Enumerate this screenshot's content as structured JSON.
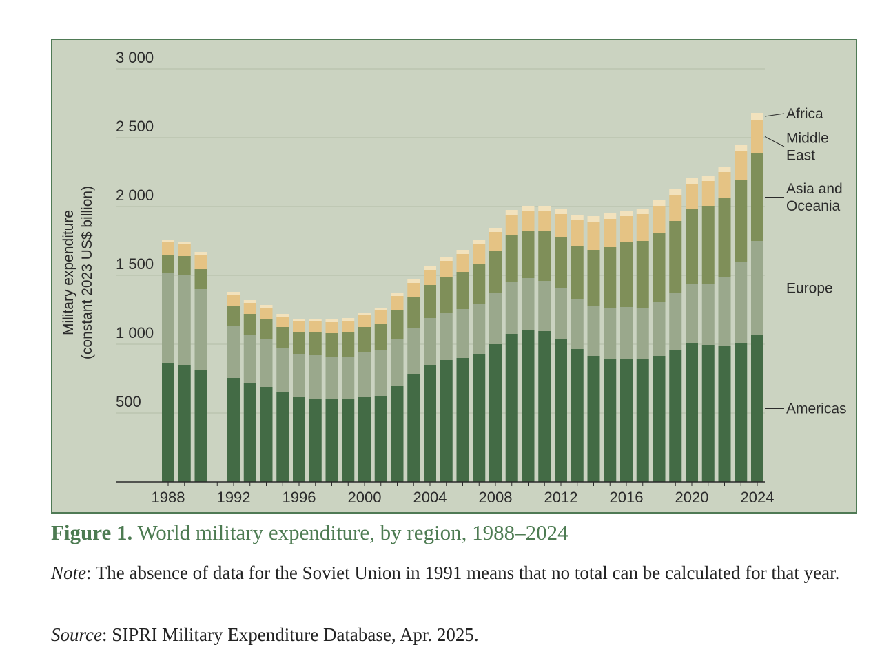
{
  "chart_data": {
    "type": "bar",
    "stacked": true,
    "title": "World military expenditure, by region, 1988–2024",
    "ylabel_line1": "Military expenditure",
    "ylabel_line2": "(constant 2023 US$ billion)",
    "xlabel": "",
    "ylim": [
      0,
      3000
    ],
    "y_ticks": [
      500,
      1000,
      1500,
      2000,
      2500,
      3000
    ],
    "y_tick_labels": [
      "500",
      "1 000",
      "1 500",
      "2 000",
      "2 500",
      "3 000"
    ],
    "x_tick_labels": [
      "1988",
      "1992",
      "1996",
      "2000",
      "2004",
      "2008",
      "2012",
      "2016",
      "2020",
      "2024"
    ],
    "categories": [
      "1988",
      "1989",
      "1990",
      "1991",
      "1992",
      "1993",
      "1994",
      "1995",
      "1996",
      "1997",
      "1998",
      "1999",
      "2000",
      "2001",
      "2002",
      "2003",
      "2004",
      "2005",
      "2006",
      "2007",
      "2008",
      "2009",
      "2010",
      "2011",
      "2012",
      "2013",
      "2014",
      "2015",
      "2016",
      "2017",
      "2018",
      "2019",
      "2020",
      "2021",
      "2022",
      "2023",
      "2024"
    ],
    "grid": true,
    "legend_position": "right (labels next to the last bar)",
    "series": [
      {
        "name": "Americas",
        "color": "#436b45",
        "values": [
          860,
          850,
          815,
          null,
          755,
          720,
          690,
          655,
          615,
          605,
          600,
          600,
          615,
          625,
          695,
          780,
          850,
          885,
          900,
          930,
          1000,
          1075,
          1105,
          1095,
          1040,
          965,
          915,
          895,
          895,
          890,
          915,
          960,
          1005,
          995,
          985,
          1005,
          1065
        ]
      },
      {
        "name": "Europe",
        "color": "#9aa88c",
        "values": [
          660,
          650,
          585,
          null,
          375,
          350,
          345,
          315,
          310,
          315,
          305,
          310,
          325,
          330,
          340,
          340,
          340,
          345,
          355,
          365,
          370,
          380,
          375,
          365,
          365,
          360,
          360,
          370,
          375,
          375,
          390,
          410,
          430,
          440,
          505,
          590,
          685
        ]
      },
      {
        "name": "Asia and Oceania",
        "color": "#7f8f59",
        "values": [
          130,
          140,
          145,
          null,
          150,
          150,
          150,
          155,
          165,
          170,
          175,
          180,
          185,
          195,
          210,
          220,
          240,
          255,
          270,
          290,
          305,
          340,
          345,
          360,
          375,
          390,
          410,
          440,
          470,
          485,
          500,
          525,
          550,
          570,
          570,
          600,
          635
        ]
      },
      {
        "name": "Middle East",
        "color": "#e5c384",
        "values": [
          90,
          85,
          105,
          null,
          80,
          80,
          80,
          75,
          75,
          75,
          80,
          80,
          85,
          95,
          105,
          105,
          110,
          120,
          130,
          140,
          140,
          145,
          145,
          145,
          165,
          185,
          205,
          205,
          190,
          195,
          200,
          190,
          180,
          180,
          190,
          210,
          245
        ]
      },
      {
        "name": "Africa",
        "color": "#f2e2bd",
        "values": [
          20,
          20,
          20,
          null,
          20,
          20,
          20,
          20,
          20,
          20,
          20,
          20,
          20,
          20,
          25,
          25,
          25,
          25,
          30,
          30,
          30,
          35,
          35,
          40,
          40,
          40,
          40,
          40,
          40,
          40,
          40,
          40,
          40,
          40,
          40,
          40,
          50
        ]
      }
    ],
    "legend_labels": [
      {
        "series": "Africa",
        "lines": [
          "Africa"
        ]
      },
      {
        "series": "Middle East",
        "lines": [
          "Middle",
          "East"
        ]
      },
      {
        "series": "Asia and Oceania",
        "lines": [
          "Asia and",
          "Oceania"
        ]
      },
      {
        "series": "Europe",
        "lines": [
          "Europe"
        ]
      },
      {
        "series": "Americas",
        "lines": [
          "Americas"
        ]
      }
    ]
  },
  "caption": {
    "label": "Figure 1.",
    "text": "World military expenditure, by region, 1988–2024"
  },
  "note": {
    "label": "Note",
    "text": ": The absence of data for the Soviet Union in 1991 means that no total can be calculated for that year."
  },
  "source": {
    "label": "Source",
    "text": ": SIPRI Military Expenditure Database, Apr. 2025."
  },
  "colors": {
    "panel_background": "#cbd3c1",
    "panel_border": "#4f7a55",
    "caption": "#4d7b52"
  }
}
